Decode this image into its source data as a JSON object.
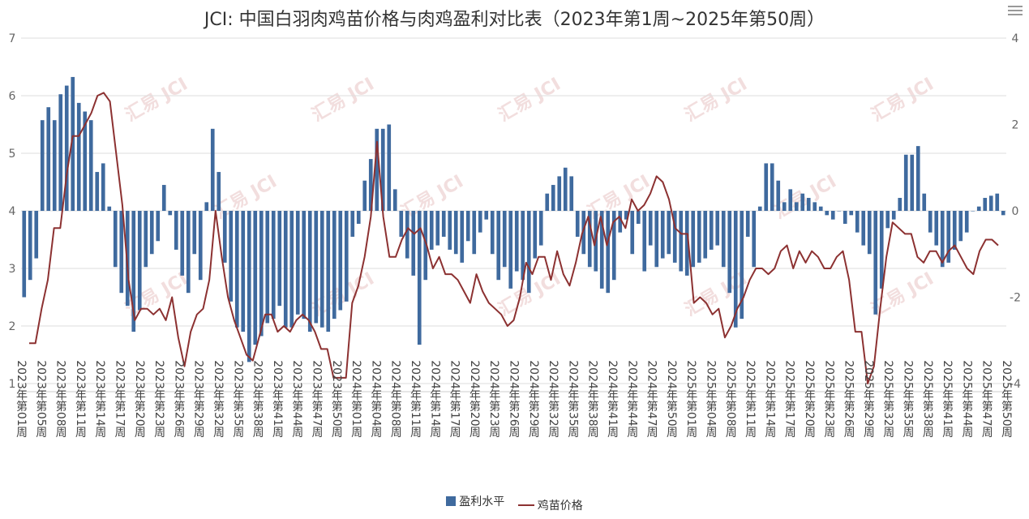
{
  "title": "JCI: 中国白羽肉鸡苗价格与肉鸡盈利对比表（2023年第1周~2025年第50周）",
  "menu_icon": "hamburger-menu-icon",
  "legend": {
    "bar_label": "盈利水平",
    "line_label": "鸡苗价格"
  },
  "watermark_text": "汇易 JCI",
  "chart_data": {
    "type": "bar+line",
    "title": "JCI: 中国白羽肉鸡苗价格与肉鸡盈利对比表（2023年第1周~2025年第50周）",
    "y_left": {
      "min": 1,
      "max": 7,
      "ticks": [
        "1",
        "2",
        "3",
        "4",
        "5",
        "6",
        "7"
      ]
    },
    "y_right": {
      "min": -4,
      "max": 4,
      "ticks": [
        "-4",
        "-2",
        "0",
        "2",
        "4"
      ]
    },
    "grid": true,
    "legend_position": "bottom",
    "x_tick_labels": [
      "2023年第01周",
      "2023年第05周",
      "2023年第08周",
      "2023年第11周",
      "2023年第14周",
      "2023年第17周",
      "2023年第20周",
      "2023年第23周",
      "2023年第26周",
      "2023年第29周",
      "2023年第32周",
      "2023年第35周",
      "2023年第38周",
      "2023年第41周",
      "2023年第44周",
      "2023年第47周",
      "2023年第50周",
      "2024年第01周",
      "2024年第04周",
      "2024年第08周",
      "2024年第11周",
      "2024年第14周",
      "2024年第17周",
      "2024年第20周",
      "2024年第23周",
      "2024年第26周",
      "2024年第29周",
      "2024年第32周",
      "2024年第35周",
      "2024年第38周",
      "2024年第41周",
      "2024年第44周",
      "2024年第47周",
      "2024年第50周",
      "2025年第01周",
      "2025年第04周",
      "2025年第08周",
      "2025年第11周",
      "2025年第14周",
      "2025年第17周",
      "2025年第20周",
      "2025年第23周",
      "2025年第26周",
      "2025年第29周",
      "2025年第32周",
      "2025年第35周",
      "2025年第38周",
      "2025年第41周",
      "2025年第44周",
      "2025年第47周",
      "2025年第50周"
    ],
    "series": [
      {
        "name": "盈利水平",
        "type": "bar",
        "axis": "right",
        "color": "#3f6a9e",
        "values": [
          -2.0,
          -1.6,
          -1.1,
          2.1,
          2.4,
          2.1,
          2.7,
          2.9,
          3.1,
          2.5,
          2.3,
          2.1,
          0.9,
          1.1,
          0.1,
          -1.3,
          -1.9,
          -2.2,
          -2.8,
          -2.3,
          -1.3,
          -1.0,
          -0.7,
          0.6,
          -0.1,
          -0.9,
          -1.5,
          -1.9,
          -1.0,
          -1.6,
          0.2,
          1.9,
          0.9,
          -1.2,
          -2.1,
          -2.7,
          -2.8,
          -3.5,
          -3.1,
          -2.9,
          -2.6,
          -2.5,
          -2.2,
          -2.7,
          -2.7,
          -2.4,
          -2.5,
          -2.8,
          -2.6,
          -2.7,
          -2.8,
          -2.5,
          -2.3,
          -2.1,
          -0.6,
          -0.3,
          0.7,
          1.2,
          1.9,
          1.9,
          2.0,
          0.5,
          -0.6,
          -1.1,
          -1.5,
          -3.1,
          -1.6,
          -0.9,
          -0.8,
          -0.6,
          -0.9,
          -1.0,
          -1.2,
          -0.7,
          -1.0,
          -0.5,
          -0.2,
          -1.0,
          -1.6,
          -1.3,
          -1.8,
          -1.4,
          -1.6,
          -1.9,
          -1.1,
          -0.8,
          0.4,
          0.6,
          0.8,
          1.0,
          0.8,
          -0.6,
          -1.0,
          -1.3,
          -1.4,
          -1.8,
          -1.9,
          -1.6,
          -0.5,
          -0.2,
          -1.0,
          -0.3,
          -1.4,
          -0.8,
          -1.3,
          -1.1,
          -1.0,
          -1.2,
          -1.4,
          -1.5,
          -1.3,
          -1.2,
          -1.1,
          -0.9,
          -0.8,
          -1.3,
          -1.9,
          -2.7,
          -2.5,
          -0.6,
          -1.3,
          0.1,
          1.1,
          1.1,
          0.7,
          0.2,
          0.5,
          0.2,
          0.4,
          0.3,
          0.2,
          0.1,
          -0.1,
          -0.2,
          0.0,
          -0.3,
          -0.1,
          -0.5,
          -0.8,
          -1.0,
          -2.4,
          -1.8,
          -0.4,
          -0.2,
          0.3,
          1.3,
          1.3,
          1.5,
          0.4,
          -0.5,
          -0.8,
          -1.3,
          -1.2,
          -0.9,
          -0.7,
          -0.5,
          0.0,
          0.1,
          0.3,
          0.35,
          0.4,
          -0.1
        ]
      },
      {
        "name": "鸡苗价格",
        "type": "line",
        "axis": "left",
        "color": "#8c3131",
        "values": [
          1.7,
          1.7,
          2.3,
          2.8,
          3.7,
          3.7,
          4.6,
          5.3,
          5.3,
          5.5,
          5.7,
          6.0,
          6.05,
          5.9,
          5.0,
          4.1,
          2.8,
          2.1,
          2.3,
          2.3,
          2.2,
          2.3,
          2.1,
          2.5,
          1.8,
          1.3,
          1.9,
          2.2,
          2.3,
          2.8,
          4.0,
          3.2,
          2.5,
          2.1,
          1.8,
          1.5,
          1.4,
          1.8,
          2.2,
          2.2,
          1.9,
          2.0,
          1.9,
          2.1,
          2.2,
          2.1,
          1.9,
          1.6,
          1.6,
          1.1,
          1.1,
          1.1,
          2.4,
          2.7,
          3.2,
          3.9,
          5.2,
          3.9,
          3.2,
          3.2,
          3.5,
          3.7,
          3.6,
          3.7,
          3.4,
          3.0,
          3.2,
          2.9,
          2.9,
          2.8,
          2.6,
          2.4,
          2.9,
          2.6,
          2.4,
          2.3,
          2.2,
          2.0,
          2.1,
          2.5,
          3.1,
          2.9,
          3.2,
          3.2,
          2.8,
          3.3,
          2.9,
          2.7,
          3.1,
          3.6,
          3.9,
          3.4,
          3.9,
          3.4,
          3.8,
          3.9,
          3.7,
          4.2,
          4.0,
          4.1,
          4.3,
          4.6,
          4.5,
          4.2,
          3.7,
          3.6,
          3.6,
          2.4,
          2.5,
          2.4,
          2.2,
          2.3,
          1.8,
          2.0,
          2.3,
          2.5,
          2.8,
          3.0,
          3.0,
          2.9,
          3.0,
          3.3,
          3.4,
          3.0,
          3.3,
          3.1,
          3.3,
          3.2,
          3.0,
          3.0,
          3.2,
          3.3,
          2.8,
          1.9,
          1.9,
          1.0,
          1.3,
          2.3,
          3.2,
          3.8,
          3.7,
          3.6,
          3.6,
          3.2,
          3.1,
          3.3,
          3.3,
          3.1,
          3.3,
          3.4,
          3.2,
          3.0,
          2.9,
          3.3,
          3.5,
          3.5,
          3.4
        ]
      }
    ]
  }
}
